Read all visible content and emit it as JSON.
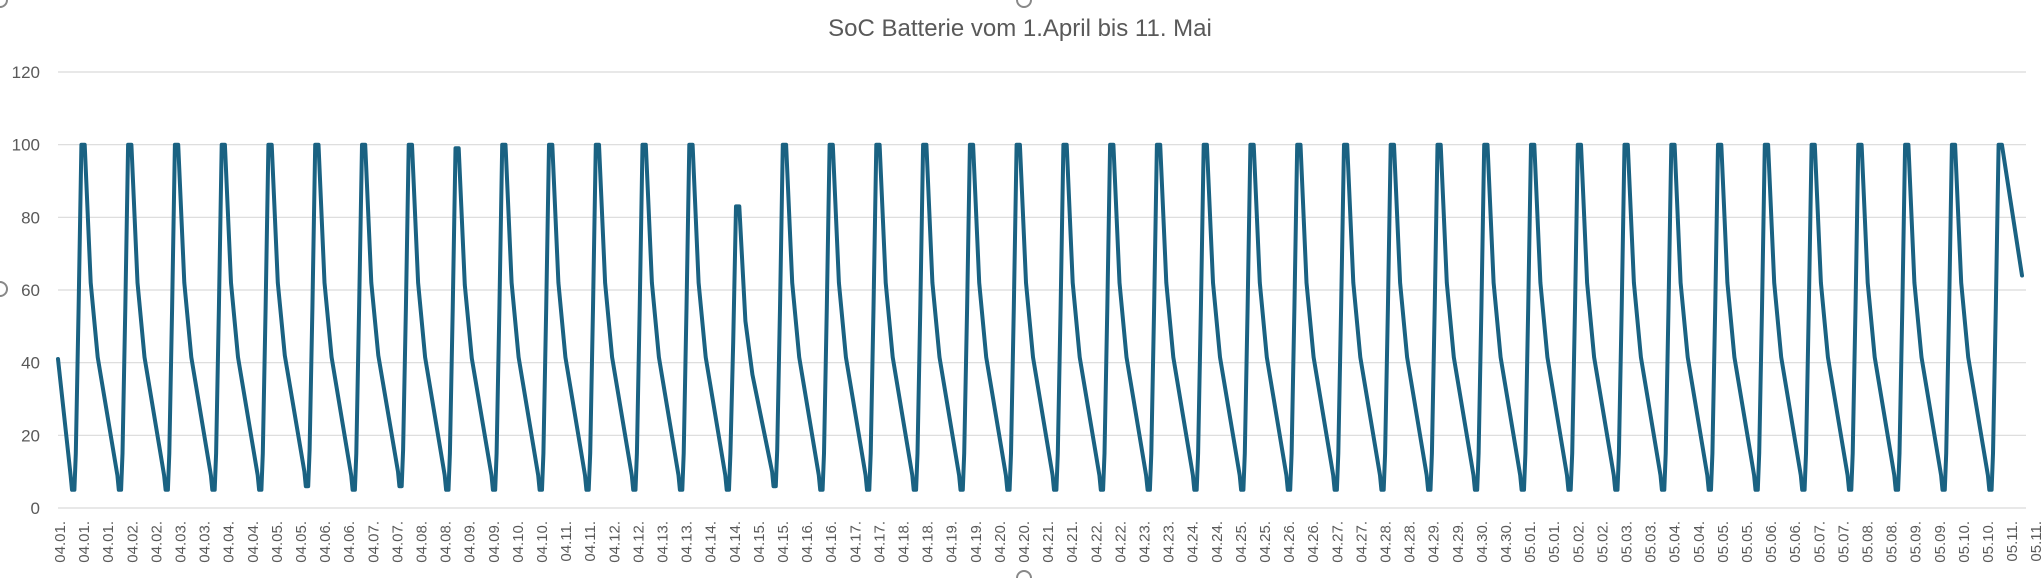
{
  "chart_data": {
    "type": "line",
    "title": "SoC Batterie vom 1.April bis 11. Mai",
    "xlabel": "",
    "ylabel": "",
    "ylim": [
      0,
      120
    ],
    "y_ticks": [
      0,
      20,
      40,
      60,
      80,
      100,
      120
    ],
    "grid": true,
    "legend": "none",
    "color": "#1a6282",
    "x_tick_labels": [
      "04.01.",
      "04.01.",
      "04.01.",
      "04.02.",
      "04.02.",
      "04.03.",
      "04.03.",
      "04.04.",
      "04.04.",
      "04.05.",
      "04.05.",
      "04.06.",
      "04.06.",
      "04.07.",
      "04.07.",
      "04.08.",
      "04.08.",
      "04.09.",
      "04.09.",
      "04.10.",
      "04.10.",
      "04.11.",
      "04.11.",
      "04.12.",
      "04.12.",
      "04.13.",
      "04.13.",
      "04.14.",
      "04.14.",
      "04.15.",
      "04.15.",
      "04.16.",
      "04.16.",
      "04.17.",
      "04.17.",
      "04.18.",
      "04.18.",
      "04.19.",
      "04.19.",
      "04.20.",
      "04.20.",
      "04.21.",
      "04.21.",
      "04.22.",
      "04.22.",
      "04.23.",
      "04.23.",
      "04.24.",
      "04.24.",
      "04.25.",
      "04.25.",
      "04.26.",
      "04.26.",
      "04.27.",
      "04.27.",
      "04.28.",
      "04.28.",
      "04.29.",
      "04.29.",
      "04.30.",
      "04.30.",
      "05.01.",
      "05.01.",
      "05.02.",
      "05.02.",
      "05.03.",
      "05.03.",
      "05.04.",
      "05.04.",
      "05.05.",
      "05.05.",
      "05.06.",
      "05.06.",
      "05.07.",
      "05.07.",
      "05.08.",
      "05.08.",
      "05.09.",
      "05.09.",
      "05.10.",
      "05.10.",
      "05.11.",
      "05.11."
    ],
    "series": [
      {
        "name": "",
        "daily_peaks": [
          100,
          100,
          100,
          100,
          100,
          100,
          100,
          100,
          99,
          100,
          100,
          100,
          100,
          100,
          83,
          100,
          100,
          100,
          100,
          100,
          100,
          100,
          100,
          100,
          100,
          100,
          100,
          100,
          100,
          100,
          100,
          100,
          100,
          100,
          100,
          100,
          100,
          100,
          100,
          100,
          100,
          100
        ],
        "daily_troughs": [
          5,
          5,
          5,
          5,
          5,
          6,
          5,
          6,
          5,
          5,
          5,
          5,
          5,
          5,
          5,
          6,
          5,
          5,
          5,
          5,
          5,
          5,
          5,
          5,
          5,
          5,
          5,
          5,
          5,
          5,
          5,
          5,
          5,
          5,
          5,
          5,
          5,
          5,
          5,
          5,
          5,
          5
        ],
        "start_value": 41,
        "end_value": 64
      }
    ]
  }
}
